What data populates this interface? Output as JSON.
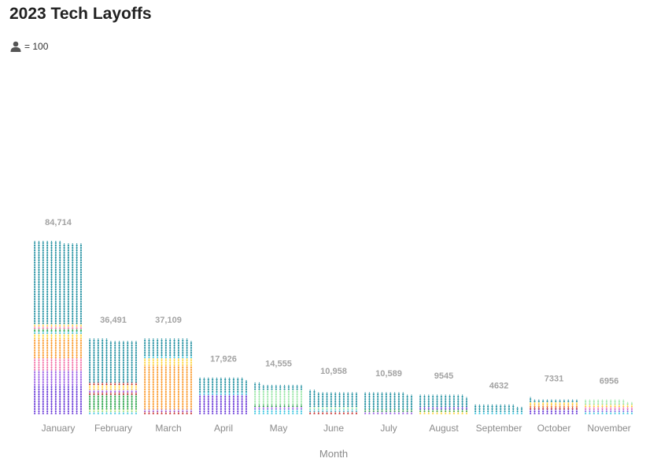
{
  "title": "2023 Tech Layoffs",
  "legend": {
    "icon": "person-icon",
    "text": "= 100"
  },
  "chart_data": {
    "type": "bar",
    "subtype": "pictogram-waffle",
    "title": "2023 Tech Layoffs",
    "unit_label": "= 100",
    "unit_value": 100,
    "xlabel": "Month",
    "ylabel": "",
    "categories": [
      "January",
      "February",
      "March",
      "April",
      "May",
      "June",
      "July",
      "August",
      "September",
      "October",
      "November"
    ],
    "values": [
      84714,
      36491,
      37109,
      17926,
      14555,
      10958,
      10589,
      9545,
      4632,
      7331,
      6956
    ],
    "value_labels": [
      "84,714",
      "36,491",
      "37,109",
      "17,926",
      "14,555",
      "10,958",
      "10,589",
      "9545",
      "4632",
      "7331",
      "6956"
    ],
    "color_bands": [
      [
        [
          "#6a3ad8",
          21
        ],
        [
          "#9b5de5",
          12
        ],
        [
          "#f472a8",
          10
        ],
        [
          "#fb9a2c",
          15
        ],
        [
          "#ffd43b",
          3
        ],
        [
          "#3ec6e0",
          3
        ],
        [
          "#2aa44a",
          1
        ],
        [
          "#c62828",
          1
        ],
        [
          "#f472a8",
          1
        ],
        [
          "#ffd43b",
          1
        ],
        [
          "#1f8fa0",
          66
        ]
      ],
      [
        [
          "#3ec6e0",
          1
        ],
        [
          "#b9e86a",
          1
        ],
        [
          "#2aa44a",
          10
        ],
        [
          "#c62828",
          1
        ],
        [
          "#f472a8",
          1
        ],
        [
          "#9b5de5",
          1
        ],
        [
          "#ffd43b",
          3
        ],
        [
          "#c62828",
          1
        ],
        [
          "#1f8fa0",
          30
        ]
      ],
      [
        [
          "#c62828",
          1
        ],
        [
          "#f472a8",
          1
        ],
        [
          "#9b5de5",
          1
        ],
        [
          "#fb9a2c",
          36
        ],
        [
          "#ffd43b",
          7
        ],
        [
          "#3ec6e0",
          1
        ],
        [
          "#1f8fa0",
          15
        ]
      ],
      [
        [
          "#6a3ad8",
          15
        ],
        [
          "#f472a8",
          1
        ],
        [
          "#3ec6e0",
          1
        ],
        [
          "#fb9a2c",
          1
        ],
        [
          "#1f8fa0",
          12
        ]
      ],
      [
        [
          "#3ec6e0",
          3
        ],
        [
          "#9b5de5",
          1
        ],
        [
          "#c62828",
          1
        ],
        [
          "#2aa44a",
          1
        ],
        [
          "#9be7a8",
          12
        ],
        [
          "#1f8fa0",
          7
        ]
      ],
      [
        [
          "#c62828",
          1
        ],
        [
          "#3ec6e0",
          1
        ],
        [
          "#2aa44a",
          1
        ],
        [
          "#9be7a8",
          1
        ],
        [
          "#1f8fa0",
          15
        ]
      ],
      [
        [
          "#9b5de5",
          1
        ],
        [
          "#f472a8",
          1
        ],
        [
          "#2aa44a",
          1
        ],
        [
          "#1f8fa0",
          15
        ]
      ],
      [
        [
          "#ffd43b",
          1
        ],
        [
          "#3ec6e0",
          1
        ],
        [
          "#2aa44a",
          1
        ],
        [
          "#9b5de5",
          1
        ],
        [
          "#6a3ad8",
          2
        ],
        [
          "#1f8fa0",
          11
        ]
      ],
      [
        [
          "#3ec6e0",
          1
        ],
        [
          "#9be7a8",
          1
        ],
        [
          "#1f8fa0",
          6
        ]
      ],
      [
        [
          "#6a3ad8",
          3
        ],
        [
          "#c62828",
          1
        ],
        [
          "#fb9a2c",
          3
        ],
        [
          "#ffd43b",
          2
        ],
        [
          "#1f8fa0",
          4
        ]
      ],
      [
        [
          "#3ec6e0",
          2
        ],
        [
          "#9b5de5",
          1
        ],
        [
          "#f472a8",
          3
        ],
        [
          "#ffd43b",
          2
        ],
        [
          "#9be7a8",
          4
        ]
      ]
    ]
  }
}
